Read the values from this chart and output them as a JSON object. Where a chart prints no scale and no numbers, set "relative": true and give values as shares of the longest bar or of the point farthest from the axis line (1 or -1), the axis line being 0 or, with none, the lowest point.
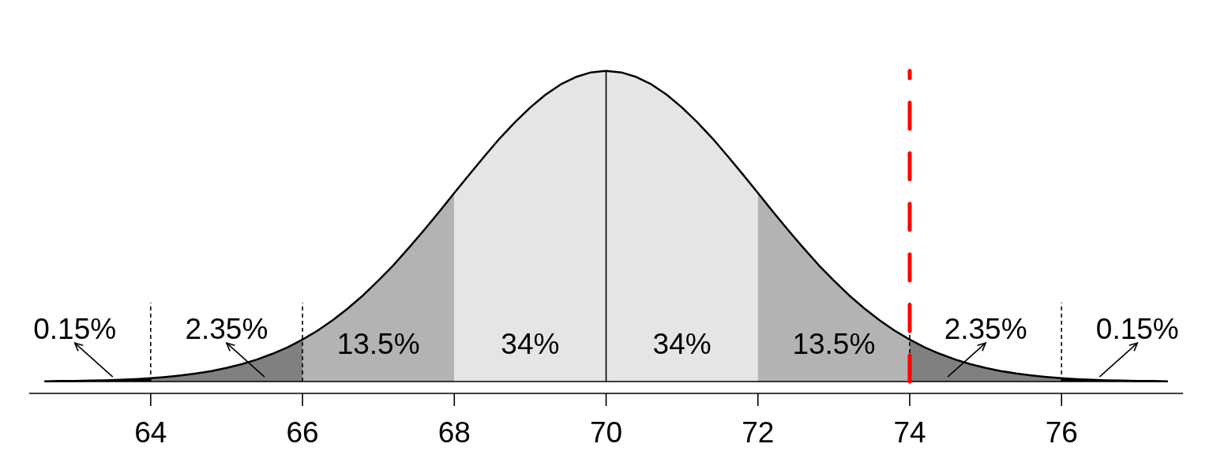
{
  "chart_data": {
    "type": "area",
    "relative": true,
    "xlim": [
      62.4,
      77.6
    ],
    "xticks": [
      64,
      66,
      68,
      70,
      72,
      74,
      76
    ],
    "series": [
      {
        "color": "#000000",
        "x": [
          62.6,
          62.8,
          63.0,
          63.2,
          63.4,
          63.6,
          63.8,
          64.0
        ],
        "values": [
          0.001,
          0.002,
          0.002,
          0.003,
          0.004,
          0.006,
          0.008,
          0.011
        ]
      },
      {
        "color": "#808080",
        "x": [
          64.0,
          64.2,
          64.4,
          64.6,
          64.8,
          65.0,
          65.2,
          65.4,
          65.6,
          65.8,
          66.0
        ],
        "values": [
          0.011,
          0.015,
          0.02,
          0.026,
          0.034,
          0.044,
          0.056,
          0.071,
          0.089,
          0.11,
          0.135
        ]
      },
      {
        "color": "#b3b3b3",
        "x": [
          66.0,
          66.2,
          66.4,
          66.6,
          66.8,
          67.0,
          67.2,
          67.4,
          67.6,
          67.8,
          68.0
        ],
        "values": [
          0.135,
          0.164,
          0.198,
          0.236,
          0.278,
          0.325,
          0.375,
          0.43,
          0.487,
          0.546,
          0.607
        ]
      },
      {
        "color": "#e5e5e5",
        "x": [
          68.0,
          68.2,
          68.4,
          68.6,
          68.8,
          69.0,
          69.2,
          69.4,
          69.6,
          69.8,
          70.0,
          70.2,
          70.4,
          70.6,
          70.8,
          71.0,
          71.2,
          71.4,
          71.6,
          71.8,
          72.0
        ],
        "values": [
          0.607,
          0.667,
          0.726,
          0.783,
          0.835,
          0.882,
          0.923,
          0.956,
          0.98,
          0.995,
          1,
          0.995,
          0.98,
          0.956,
          0.923,
          0.882,
          0.835,
          0.783,
          0.726,
          0.667,
          0.607
        ]
      },
      {
        "color": "#b3b3b3",
        "x": [
          72.0,
          72.2,
          72.4,
          72.6,
          72.8,
          73.0,
          73.2,
          73.4,
          73.6,
          73.8,
          74.0
        ],
        "values": [
          0.607,
          0.546,
          0.487,
          0.43,
          0.375,
          0.325,
          0.278,
          0.236,
          0.198,
          0.164,
          0.135
        ]
      },
      {
        "color": "#808080",
        "x": [
          74.0,
          74.2,
          74.4,
          74.6,
          74.8,
          75.0,
          75.2,
          75.4,
          75.6,
          75.8,
          76.0
        ],
        "values": [
          0.135,
          0.11,
          0.089,
          0.071,
          0.056,
          0.044,
          0.034,
          0.026,
          0.02,
          0.015,
          0.011
        ]
      },
      {
        "color": "#000000",
        "x": [
          76.0,
          76.2,
          76.4,
          76.6,
          76.8,
          77.0,
          77.2,
          77.4
        ],
        "values": [
          0.011,
          0.008,
          0.006,
          0.004,
          0.003,
          0.002,
          0.002,
          0.001
        ]
      },
      {
        "type": "line",
        "color": "#000000",
        "x": [
          62.6,
          62.8,
          63.0,
          63.2,
          63.4,
          63.6,
          63.8,
          64.0,
          64.2,
          64.4,
          64.6,
          64.8,
          65.0,
          65.2,
          65.4,
          65.6,
          65.8,
          66.0,
          66.2,
          66.4,
          66.6,
          66.8,
          67.0,
          67.2,
          67.4,
          67.6,
          67.8,
          68.0,
          68.2,
          68.4,
          68.6,
          68.8,
          69.0,
          69.2,
          69.4,
          69.6,
          69.8,
          70.0,
          70.2,
          70.4,
          70.6,
          70.8,
          71.0,
          71.2,
          71.4,
          71.6,
          71.8,
          72.0,
          72.2,
          72.4,
          72.6,
          72.8,
          73.0,
          73.2,
          73.4,
          73.6,
          73.8,
          74.0,
          74.2,
          74.4,
          74.6,
          74.8,
          75.0,
          75.2,
          75.4,
          75.6,
          75.8,
          76.0,
          76.2,
          76.4,
          76.6,
          76.8,
          77.0,
          77.2,
          77.4
        ],
        "values": [
          0.001,
          0.002,
          0.002,
          0.003,
          0.004,
          0.006,
          0.008,
          0.011,
          0.015,
          0.02,
          0.026,
          0.034,
          0.044,
          0.056,
          0.071,
          0.089,
          0.11,
          0.135,
          0.164,
          0.198,
          0.236,
          0.278,
          0.325,
          0.375,
          0.43,
          0.487,
          0.546,
          0.607,
          0.667,
          0.726,
          0.783,
          0.835,
          0.882,
          0.923,
          0.956,
          0.98,
          0.995,
          1,
          0.995,
          0.98,
          0.956,
          0.923,
          0.882,
          0.835,
          0.783,
          0.726,
          0.667,
          0.607,
          0.546,
          0.487,
          0.43,
          0.375,
          0.325,
          0.278,
          0.236,
          0.198,
          0.164,
          0.135,
          0.11,
          0.089,
          0.071,
          0.056,
          0.044,
          0.034,
          0.026,
          0.02,
          0.015,
          0.011,
          0.008,
          0.006,
          0.004,
          0.003,
          0.002,
          0.002,
          0.001
        ]
      }
    ],
    "ref_lines": [
      {
        "axis": "y",
        "value": 0,
        "color": "#000000"
      },
      {
        "axis": "x",
        "value": 64,
        "color": "#000000",
        "line_style": "dashed"
      },
      {
        "axis": "x",
        "value": 66,
        "color": "#000000",
        "line_style": "dashed"
      },
      {
        "axis": "x",
        "value": 74,
        "color": "#000000",
        "line_style": "dashed"
      },
      {
        "axis": "x",
        "value": 76,
        "color": "#000000",
        "line_style": "dashed"
      },
      {
        "axis": "x",
        "value": 70,
        "color": "#000000",
        "line_style": "solid"
      },
      {
        "axis": "x",
        "value": 74,
        "color": "#ff0000",
        "line_style": "dashed"
      }
    ],
    "annotations": [
      "0.15%",
      "2.35%",
      "13.5%",
      "34%",
      "34%",
      "13.5%",
      "2.35%",
      "0.15%"
    ]
  }
}
